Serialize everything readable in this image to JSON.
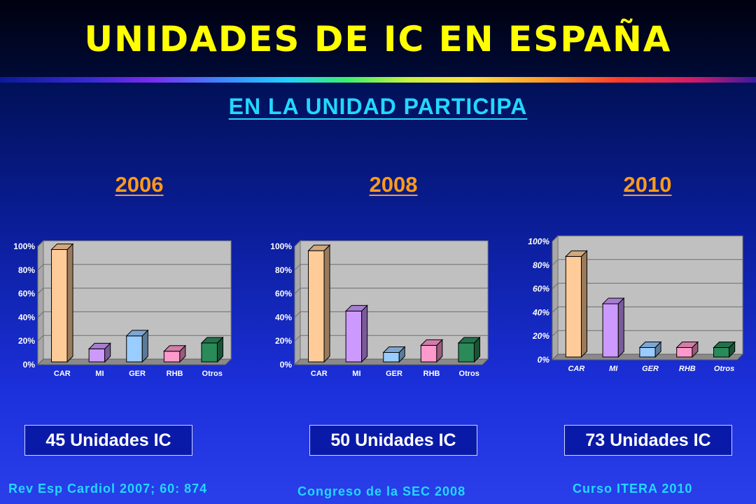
{
  "title": "UNIDADES DE IC EN ESPAÑA",
  "subtitle": "EN LA UNIDAD PARTICIPA",
  "colors": {
    "title": "#ffff00",
    "subtitle": "#22d8ff",
    "year": "#ff9a1a",
    "bars": [
      "#ffcc99",
      "#cc99ff",
      "#99ccff",
      "#ff99cc",
      "#2a8a5a"
    ],
    "plot_bg": "#c0c0c0"
  },
  "chart_data": [
    {
      "type": "bar",
      "title": "2006",
      "categories": [
        "CAR",
        "MI",
        "GER",
        "RHB",
        "Otros"
      ],
      "values": [
        95,
        11,
        22,
        9,
        16
      ],
      "yticks": [
        "0%",
        "20%",
        "40%",
        "60%",
        "80%",
        "100%"
      ],
      "ylim": [
        0,
        100
      ],
      "grid": true
    },
    {
      "type": "bar",
      "title": "2008",
      "categories": [
        "CAR",
        "MI",
        "GER",
        "RHB",
        "Otros"
      ],
      "values": [
        94,
        43,
        8,
        14,
        16
      ],
      "yticks": [
        "0%",
        "20%",
        "40%",
        "60%",
        "80%",
        "100%"
      ],
      "ylim": [
        0,
        100
      ],
      "grid": true
    },
    {
      "type": "bar",
      "title": "2010",
      "categories": [
        "CAR",
        "MI",
        "GER",
        "RHB",
        "Otros"
      ],
      "values": [
        85,
        45,
        8,
        8,
        8
      ],
      "yticks": [
        "0%",
        "20%",
        "40%",
        "60%",
        "80%",
        "100%"
      ],
      "ylim": [
        0,
        100
      ],
      "grid": true
    }
  ],
  "units": [
    "45 Unidades IC",
    "50 Unidades IC",
    "73 Unidades IC"
  ],
  "references": [
    "Rev Esp Cardiol 2007; 60: 874",
    "Congreso de la SEC 2008",
    "Curso ITERA 2010"
  ]
}
